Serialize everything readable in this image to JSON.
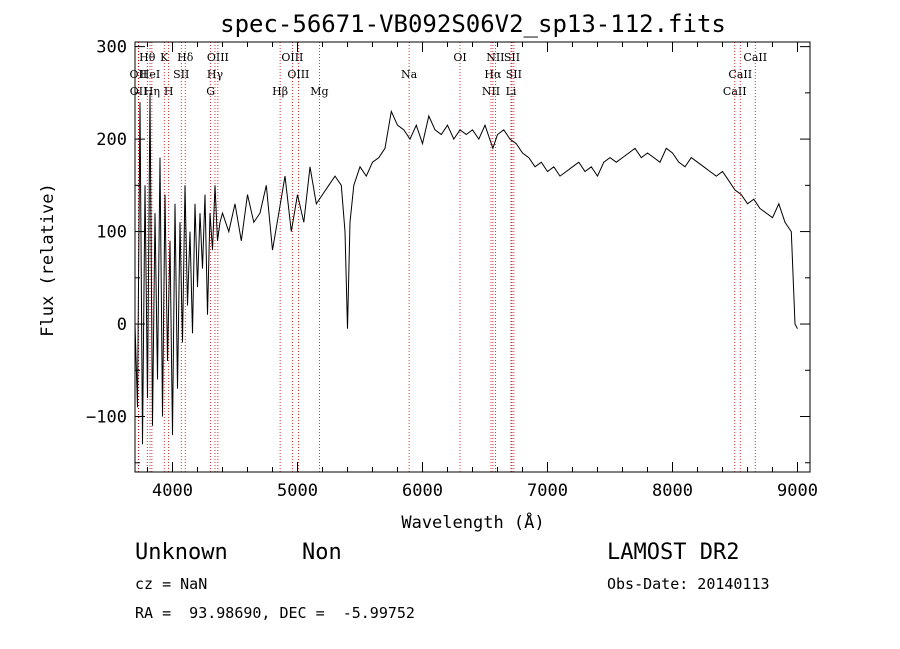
{
  "title": "spec-56671-VB092S06V2_sp13-112.fits",
  "xlabel": "Wavelength (Å)",
  "ylabel": "Flux (relative)",
  "footer": {
    "class_label": "Unknown",
    "subclass_label": "Non",
    "survey": "LAMOST DR2",
    "cz": "cz = NaN",
    "obs_date": "Obs-Date: 20140113",
    "coords": "RA =  93.98690, DEC =  -5.99752"
  },
  "chart_data": {
    "type": "line",
    "title": "spec-56671-VB092S06V2_sp13-112.fits",
    "xlabel": "Wavelength (Å)",
    "ylabel": "Flux (relative)",
    "xlim": [
      3700,
      9100
    ],
    "ylim": [
      -160,
      305
    ],
    "x_ticks": [
      4000,
      5000,
      6000,
      7000,
      8000,
      9000
    ],
    "y_ticks": [
      -100,
      0,
      100,
      200,
      300
    ],
    "grid": false,
    "line_color": "#000000",
    "marker_color": "#cc0000",
    "series": [
      {
        "x": [
          3700,
          3720,
          3740,
          3760,
          3780,
          3800,
          3820,
          3840,
          3860,
          3880,
          3900,
          3920,
          3940,
          3960,
          3980,
          4000,
          4020,
          4040,
          4060,
          4080,
          4100,
          4120,
          4140,
          4160,
          4180,
          4200,
          4220,
          4240,
          4260,
          4280,
          4300,
          4320,
          4340,
          4360,
          4380,
          4400,
          4450,
          4500,
          4550,
          4600,
          4650,
          4700,
          4750,
          4800,
          4850,
          4900,
          4950,
          5000,
          5050,
          5100,
          5150,
          5200,
          5250,
          5300,
          5350,
          5380,
          5400,
          5420,
          5450,
          5500,
          5550,
          5600,
          5650,
          5700,
          5750,
          5800,
          5850,
          5900,
          5950,
          6000,
          6050,
          6100,
          6150,
          6200,
          6250,
          6300,
          6350,
          6400,
          6450,
          6500,
          6550,
          6563,
          6600,
          6650,
          6700,
          6750,
          6800,
          6850,
          6900,
          6950,
          7000,
          7050,
          7100,
          7150,
          7200,
          7250,
          7300,
          7350,
          7400,
          7450,
          7500,
          7550,
          7600,
          7650,
          7700,
          7750,
          7800,
          7850,
          7900,
          7950,
          8000,
          8050,
          8100,
          8150,
          8200,
          8250,
          8300,
          8350,
          8400,
          8450,
          8500,
          8550,
          8600,
          8650,
          8700,
          8750,
          8800,
          8850,
          8900,
          8950,
          8980,
          9000
        ],
        "y": [
          0,
          -90,
          240,
          -130,
          150,
          -80,
          250,
          -110,
          120,
          -60,
          180,
          -100,
          140,
          -40,
          90,
          -120,
          130,
          -70,
          110,
          -20,
          150,
          20,
          100,
          -10,
          130,
          40,
          120,
          60,
          140,
          10,
          120,
          80,
          150,
          90,
          110,
          120,
          100,
          130,
          90,
          140,
          110,
          120,
          150,
          80,
          120,
          160,
          100,
          140,
          110,
          170,
          130,
          140,
          150,
          160,
          150,
          100,
          -5,
          110,
          150,
          170,
          160,
          175,
          180,
          190,
          230,
          215,
          210,
          200,
          215,
          195,
          225,
          210,
          205,
          215,
          200,
          210,
          205,
          210,
          200,
          215,
          195,
          190,
          205,
          210,
          200,
          195,
          185,
          180,
          170,
          175,
          165,
          170,
          160,
          165,
          170,
          175,
          165,
          170,
          160,
          175,
          180,
          175,
          180,
          185,
          190,
          180,
          185,
          180,
          175,
          190,
          185,
          175,
          170,
          180,
          175,
          170,
          165,
          160,
          165,
          155,
          145,
          140,
          130,
          135,
          125,
          120,
          115,
          130,
          110,
          100,
          0,
          -5
        ]
      }
    ],
    "annotations": [
      {
        "label": "OII",
        "x": 3727,
        "row": 2
      },
      {
        "label": "OII",
        "x": 3729,
        "row": 3
      },
      {
        "label": "Hθ",
        "x": 3798,
        "row": 1
      },
      {
        "label": "HeI",
        "x": 3820,
        "row": 2
      },
      {
        "label": "Hη",
        "x": 3835,
        "row": 3
      },
      {
        "label": "K",
        "x": 3934,
        "row": 1
      },
      {
        "label": "SII",
        "x": 4070,
        "row": 2
      },
      {
        "label": "H",
        "x": 3969,
        "row": 3
      },
      {
        "label": "Hδ",
        "x": 4102,
        "row": 1
      },
      {
        "label": "OIII",
        "x": 4363,
        "row": 1
      },
      {
        "label": "Hγ",
        "x": 4340,
        "row": 2
      },
      {
        "label": "G",
        "x": 4305,
        "row": 3
      },
      {
        "label": "OIII",
        "x": 4959,
        "row": 1
      },
      {
        "label": "OIII",
        "x": 5007,
        "row": 2
      },
      {
        "label": "Hβ",
        "x": 4861,
        "row": 3
      },
      {
        "label": "Mg",
        "x": 5175,
        "row": 3
      },
      {
        "label": "Na",
        "x": 5893,
        "row": 2
      },
      {
        "label": "OI",
        "x": 6300,
        "row": 1
      },
      {
        "label": "NII",
        "x": 6583,
        "row": 1
      },
      {
        "label": "Hα",
        "x": 6563,
        "row": 2
      },
      {
        "label": "NII",
        "x": 6548,
        "row": 3
      },
      {
        "label": "SII",
        "x": 6716,
        "row": 1
      },
      {
        "label": "SII",
        "x": 6731,
        "row": 2
      },
      {
        "label": "Li",
        "x": 6708,
        "row": 3
      },
      {
        "label": "CaII",
        "x": 8662,
        "row": 1
      },
      {
        "label": "CaII",
        "x": 8542,
        "row": 2
      },
      {
        "label": "CaII",
        "x": 8498,
        "row": 3
      }
    ]
  }
}
